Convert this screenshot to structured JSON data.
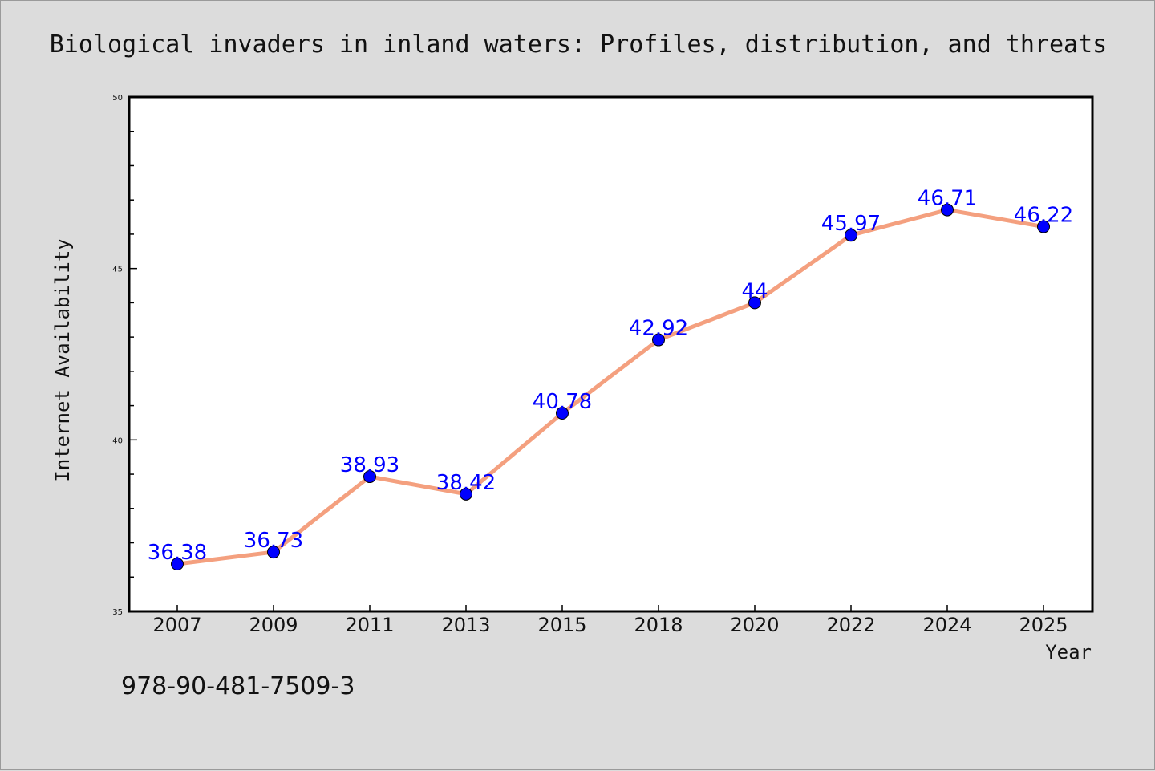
{
  "chart_data": {
    "type": "line",
    "title": "Biological invaders in inland waters: Profiles, distribution, and threats",
    "xlabel": "Year",
    "ylabel": "Internet Availability",
    "categories": [
      "2007",
      "2009",
      "2011",
      "2013",
      "2015",
      "2018",
      "2020",
      "2022",
      "2024",
      "2025"
    ],
    "values": [
      36.38,
      36.73,
      38.93,
      38.42,
      40.78,
      42.92,
      44,
      45.97,
      46.71,
      46.22
    ],
    "data_labels": [
      "36.38",
      "36.73",
      "38.93",
      "38.42",
      "40.78",
      "42.92",
      "44",
      "45.97",
      "46.71",
      "46.22"
    ],
    "ylim": [
      35,
      50
    ],
    "yticks": [
      "35",
      "40",
      "45",
      "50"
    ],
    "grid": false,
    "line_color": "#f4a07f",
    "marker_color": "#0000ff",
    "label_color": "#0000ff"
  },
  "footer": {
    "isbn": "978-90-481-7509-3"
  }
}
